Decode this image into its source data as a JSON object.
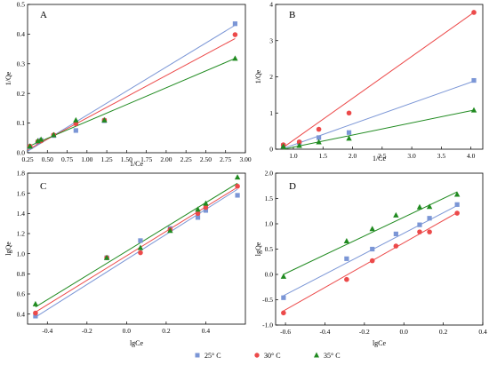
{
  "colors": {
    "25": "#7b96d6",
    "30": "#ec4a4a",
    "35": "#1f8a1f"
  },
  "legend": {
    "items": [
      {
        "label": "25° C",
        "color": "#7b96d6",
        "marker": "square"
      },
      {
        "label": "30° C",
        "color": "#ec4a4a",
        "marker": "circle"
      },
      {
        "label": "35° C",
        "color": "#1f8a1f",
        "marker": "triangle"
      }
    ]
  },
  "chart_data": [
    {
      "panel": "A",
      "type": "scatter",
      "xlabel": "1/Ce",
      "ylabel": "1/Qe",
      "xlim": [
        0.25,
        3.0
      ],
      "ylim": [
        0,
        0.5
      ],
      "xticks": [
        "0.25",
        "0.50",
        "0.75",
        "1.00",
        "1.25",
        "1.50",
        "1.75",
        "2.00",
        "2.25",
        "2.50",
        "2.75",
        "3.00"
      ],
      "yticks": [
        "0.0",
        "0.1",
        "0.2",
        "0.3",
        "0.4",
        "0.5"
      ],
      "series": [
        {
          "name": "25° C",
          "color": "#7b96d6",
          "marker": "square",
          "x": [
            0.28,
            0.38,
            0.42,
            0.58,
            0.86,
            1.22,
            2.87
          ],
          "y": [
            0.02,
            0.036,
            0.042,
            0.058,
            0.075,
            0.108,
            0.435
          ],
          "fit": [
            [
              0.25,
              0.005
            ],
            [
              2.87,
              0.43
            ]
          ]
        },
        {
          "name": "30° C",
          "color": "#ec4a4a",
          "marker": "circle",
          "x": [
            0.28,
            0.38,
            0.42,
            0.58,
            0.86,
            1.22,
            2.87
          ],
          "y": [
            0.022,
            0.038,
            0.04,
            0.06,
            0.098,
            0.11,
            0.398
          ],
          "fit": [
            [
              0.25,
              0.01
            ],
            [
              2.87,
              0.385
            ]
          ]
        },
        {
          "name": "35° C",
          "color": "#1f8a1f",
          "marker": "triangle",
          "x": [
            0.28,
            0.38,
            0.42,
            0.58,
            0.86,
            1.22,
            2.87
          ],
          "y": [
            0.022,
            0.04,
            0.045,
            0.06,
            0.11,
            0.11,
            0.318
          ],
          "fit": [
            [
              0.25,
              0.02
            ],
            [
              2.87,
              0.318
            ]
          ]
        }
      ]
    },
    {
      "panel": "B",
      "type": "scatter",
      "xlabel": "1/Ce",
      "ylabel": "1/Qe",
      "xlim": [
        0.7,
        4.2
      ],
      "ylim": [
        0,
        4.0
      ],
      "xticks": [
        "1.0",
        "1.5",
        "2.0",
        "2.5",
        "3.0",
        "3.5",
        "4.0"
      ],
      "yticks": [
        "0",
        "1",
        "2",
        "3",
        "4"
      ],
      "series": [
        {
          "name": "25° C",
          "color": "#7b96d6",
          "marker": "square",
          "x": [
            0.83,
            1.1,
            1.43,
            1.94,
            4.05
          ],
          "y": [
            0.1,
            0.18,
            0.32,
            0.46,
            1.9
          ],
          "fit": [
            [
              0.83,
              0.02
            ],
            [
              4.05,
              1.88
            ]
          ]
        },
        {
          "name": "30° C",
          "color": "#ec4a4a",
          "marker": "circle",
          "x": [
            0.83,
            1.1,
            1.43,
            1.94,
            4.05
          ],
          "y": [
            0.12,
            0.2,
            0.55,
            1.0,
            3.78
          ],
          "fit": [
            [
              0.83,
              0.05
            ],
            [
              4.05,
              3.78
            ]
          ]
        },
        {
          "name": "35° C",
          "color": "#1f8a1f",
          "marker": "triangle",
          "x": [
            0.83,
            1.1,
            1.43,
            1.94,
            4.05
          ],
          "y": [
            0.08,
            0.1,
            0.2,
            0.3,
            1.08
          ],
          "fit": [
            [
              0.83,
              0.0
            ],
            [
              4.05,
              1.08
            ]
          ]
        }
      ]
    },
    {
      "panel": "C",
      "type": "scatter",
      "xlabel": "lgCe",
      "ylabel": "lgQe",
      "xlim": [
        -0.5,
        0.6
      ],
      "ylim": [
        0.3,
        1.8
      ],
      "xticks": [
        "-0.4",
        "-0.2",
        "0.0",
        "0.2",
        "0.4"
      ],
      "yticks": [
        "0.4",
        "0.6",
        "0.8",
        "1.0",
        "1.2",
        "1.4",
        "1.6",
        "1.8"
      ],
      "series": [
        {
          "name": "25° C",
          "color": "#7b96d6",
          "marker": "square",
          "x": [
            -0.46,
            -0.1,
            0.07,
            0.22,
            0.36,
            0.4,
            0.56
          ],
          "y": [
            0.38,
            0.96,
            1.13,
            1.25,
            1.36,
            1.43,
            1.58
          ],
          "fit": [
            [
              -0.46,
              0.37
            ],
            [
              0.56,
              1.64
            ]
          ]
        },
        {
          "name": "30° C",
          "color": "#ec4a4a",
          "marker": "circle",
          "x": [
            -0.46,
            -0.1,
            0.07,
            0.22,
            0.36,
            0.4,
            0.56
          ],
          "y": [
            0.41,
            0.96,
            1.01,
            1.24,
            1.4,
            1.46,
            1.67
          ],
          "fit": [
            [
              -0.46,
              0.42
            ],
            [
              0.56,
              1.66
            ]
          ]
        },
        {
          "name": "35° C",
          "color": "#1f8a1f",
          "marker": "triangle",
          "x": [
            -0.46,
            -0.1,
            0.07,
            0.22,
            0.36,
            0.4,
            0.56
          ],
          "y": [
            0.5,
            0.96,
            1.06,
            1.23,
            1.44,
            1.5,
            1.76
          ],
          "fit": [
            [
              -0.46,
              0.47
            ],
            [
              0.56,
              1.7
            ]
          ]
        }
      ]
    },
    {
      "panel": "D",
      "type": "scatter",
      "xlabel": "lgCe",
      "ylabel": "lgQe",
      "xlim": [
        -0.65,
        0.4
      ],
      "ylim": [
        -1.0,
        2.0
      ],
      "xticks": [
        "-0.6",
        "-0.4",
        "-0.2",
        "0.0",
        "0.2",
        "0.4"
      ],
      "yticks": [
        "-1.0",
        "-0.5",
        "0.0",
        "0.5",
        "1.0",
        "1.5",
        "2.0"
      ],
      "series": [
        {
          "name": "25° C",
          "color": "#7b96d6",
          "marker": "square",
          "x": [
            -0.61,
            -0.29,
            -0.16,
            -0.04,
            0.08,
            0.13,
            0.27
          ],
          "y": [
            -0.46,
            0.31,
            0.5,
            0.8,
            0.98,
            1.11,
            1.38
          ],
          "fit": [
            [
              -0.61,
              -0.42
            ],
            [
              0.27,
              1.36
            ]
          ]
        },
        {
          "name": "30° C",
          "color": "#ec4a4a",
          "marker": "circle",
          "x": [
            -0.61,
            -0.29,
            -0.16,
            -0.04,
            0.08,
            0.13,
            0.27
          ],
          "y": [
            -0.76,
            -0.1,
            0.27,
            0.56,
            0.84,
            0.84,
            1.21
          ],
          "fit": [
            [
              -0.61,
              -0.72
            ],
            [
              0.27,
              1.22
            ]
          ]
        },
        {
          "name": "35° C",
          "color": "#1f8a1f",
          "marker": "triangle",
          "x": [
            -0.61,
            -0.29,
            -0.16,
            -0.04,
            0.08,
            0.13,
            0.27
          ],
          "y": [
            -0.04,
            0.66,
            0.9,
            1.17,
            1.33,
            1.34,
            1.58
          ],
          "fit": [
            [
              -0.61,
              0.0
            ],
            [
              0.27,
              1.63
            ]
          ]
        }
      ]
    }
  ]
}
